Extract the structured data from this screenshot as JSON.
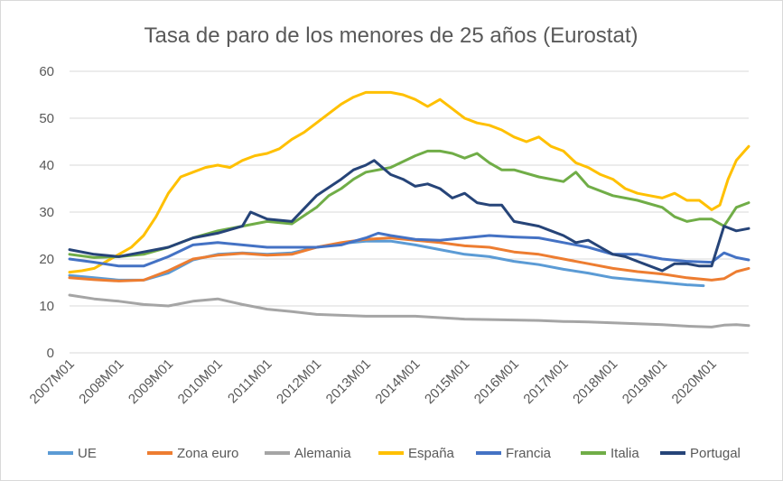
{
  "chart_data": {
    "type": "line",
    "title": "Tasa de paro de los menores de 25 años (Eurostat)",
    "xlabel": "",
    "ylabel": "",
    "ylim": [
      0,
      60
    ],
    "yticks": [
      0,
      10,
      20,
      30,
      40,
      50,
      60
    ],
    "x_start": "2007M01",
    "x_end": "2020M10",
    "xtick_labels": [
      "2007M01",
      "2008M01",
      "2009M01",
      "2010M01",
      "2011M01",
      "2012M01",
      "2013M01",
      "2014M01",
      "2015M01",
      "2016M01",
      "2017M01",
      "2018M01",
      "2019M01",
      "2020M01"
    ],
    "grid": true,
    "legend_position": "bottom",
    "series": [
      {
        "name": "UE",
        "color": "#5b9bd5",
        "width": 3,
        "points": [
          [
            "2007M01",
            16.5
          ],
          [
            "2007M07",
            16
          ],
          [
            "2008M01",
            15.5
          ],
          [
            "2008M07",
            15.5
          ],
          [
            "2009M01",
            17
          ],
          [
            "2009M07",
            19.8
          ],
          [
            "2010M01",
            21
          ],
          [
            "2010M07",
            21.3
          ],
          [
            "2011M01",
            21
          ],
          [
            "2011M07",
            21.3
          ],
          [
            "2012M01",
            22.5
          ],
          [
            "2012M07",
            23.3
          ],
          [
            "2013M01",
            23.8
          ],
          [
            "2013M07",
            23.8
          ],
          [
            "2014M01",
            23
          ],
          [
            "2014M07",
            22
          ],
          [
            "2015M01",
            21
          ],
          [
            "2015M07",
            20.5
          ],
          [
            "2016M01",
            19.5
          ],
          [
            "2016M07",
            18.8
          ],
          [
            "2017M01",
            17.8
          ],
          [
            "2017M07",
            17
          ],
          [
            "2018M01",
            16
          ],
          [
            "2018M07",
            15.5
          ],
          [
            "2019M01",
            15
          ],
          [
            "2019M07",
            14.5
          ],
          [
            "2019M11",
            14.3
          ]
        ]
      },
      {
        "name": "Zona euro",
        "color": "#ed7d31",
        "width": 3,
        "points": [
          [
            "2007M01",
            16
          ],
          [
            "2007M07",
            15.6
          ],
          [
            "2008M01",
            15.3
          ],
          [
            "2008M07",
            15.5
          ],
          [
            "2009M01",
            17.5
          ],
          [
            "2009M07",
            20
          ],
          [
            "2010M01",
            20.8
          ],
          [
            "2010M07",
            21.2
          ],
          [
            "2011M01",
            20.8
          ],
          [
            "2011M07",
            21
          ],
          [
            "2012M01",
            22.5
          ],
          [
            "2012M07",
            23.5
          ],
          [
            "2013M01",
            24.2
          ],
          [
            "2013M07",
            24.5
          ],
          [
            "2014M01",
            24
          ],
          [
            "2014M07",
            23.5
          ],
          [
            "2015M01",
            22.8
          ],
          [
            "2015M07",
            22.5
          ],
          [
            "2016M01",
            21.5
          ],
          [
            "2016M07",
            21
          ],
          [
            "2017M01",
            20
          ],
          [
            "2017M07",
            19
          ],
          [
            "2018M01",
            18
          ],
          [
            "2018M07",
            17.3
          ],
          [
            "2019M01",
            16.8
          ],
          [
            "2019M07",
            16
          ],
          [
            "2020M01",
            15.5
          ],
          [
            "2020M04",
            15.8
          ],
          [
            "2020M07",
            17.3
          ],
          [
            "2020M10",
            18
          ]
        ]
      },
      {
        "name": "Alemania",
        "color": "#a5a5a5",
        "width": 3,
        "points": [
          [
            "2007M01",
            12.3
          ],
          [
            "2007M07",
            11.5
          ],
          [
            "2008M01",
            11
          ],
          [
            "2008M07",
            10.3
          ],
          [
            "2009M01",
            10
          ],
          [
            "2009M07",
            11
          ],
          [
            "2010M01",
            11.5
          ],
          [
            "2010M07",
            10.3
          ],
          [
            "2011M01",
            9.3
          ],
          [
            "2011M07",
            8.8
          ],
          [
            "2012M01",
            8.2
          ],
          [
            "2012M07",
            8
          ],
          [
            "2013M01",
            7.8
          ],
          [
            "2013M07",
            7.8
          ],
          [
            "2014M01",
            7.8
          ],
          [
            "2014M07",
            7.5
          ],
          [
            "2015M01",
            7.2
          ],
          [
            "2015M07",
            7.1
          ],
          [
            "2016M01",
            7
          ],
          [
            "2016M07",
            6.9
          ],
          [
            "2017M01",
            6.7
          ],
          [
            "2017M07",
            6.6
          ],
          [
            "2018M01",
            6.4
          ],
          [
            "2018M07",
            6.2
          ],
          [
            "2019M01",
            6
          ],
          [
            "2019M07",
            5.7
          ],
          [
            "2020M01",
            5.5
          ],
          [
            "2020M04",
            5.9
          ],
          [
            "2020M07",
            6
          ],
          [
            "2020M10",
            5.8
          ]
        ]
      },
      {
        "name": "España",
        "color": "#ffc000",
        "width": 3,
        "points": [
          [
            "2007M01",
            17.2
          ],
          [
            "2007M04",
            17.5
          ],
          [
            "2007M07",
            18
          ],
          [
            "2007M10",
            19.5
          ],
          [
            "2008M01",
            21
          ],
          [
            "2008M04",
            22.5
          ],
          [
            "2008M07",
            25
          ],
          [
            "2008M10",
            29
          ],
          [
            "2009M01",
            34
          ],
          [
            "2009M04",
            37.5
          ],
          [
            "2009M07",
            38.5
          ],
          [
            "2009M10",
            39.5
          ],
          [
            "2010M01",
            40
          ],
          [
            "2010M04",
            39.5
          ],
          [
            "2010M07",
            41
          ],
          [
            "2010M10",
            42
          ],
          [
            "2011M01",
            42.5
          ],
          [
            "2011M04",
            43.5
          ],
          [
            "2011M07",
            45.5
          ],
          [
            "2011M10",
            47
          ],
          [
            "2012M01",
            49
          ],
          [
            "2012M04",
            51
          ],
          [
            "2012M07",
            53
          ],
          [
            "2012M10",
            54.5
          ],
          [
            "2013M01",
            55.5
          ],
          [
            "2013M04",
            55.5
          ],
          [
            "2013M07",
            55.5
          ],
          [
            "2013M10",
            55
          ],
          [
            "2014M01",
            54
          ],
          [
            "2014M04",
            52.5
          ],
          [
            "2014M07",
            54
          ],
          [
            "2014M10",
            52
          ],
          [
            "2015M01",
            50
          ],
          [
            "2015M04",
            49
          ],
          [
            "2015M07",
            48.5
          ],
          [
            "2015M10",
            47.5
          ],
          [
            "2016M01",
            46
          ],
          [
            "2016M04",
            45
          ],
          [
            "2016M07",
            46
          ],
          [
            "2016M10",
            44
          ],
          [
            "2017M01",
            43
          ],
          [
            "2017M04",
            40.5
          ],
          [
            "2017M07",
            39.5
          ],
          [
            "2017M10",
            38
          ],
          [
            "2018M01",
            37
          ],
          [
            "2018M04",
            35
          ],
          [
            "2018M07",
            34
          ],
          [
            "2018M10",
            33.5
          ],
          [
            "2019M01",
            33
          ],
          [
            "2019M04",
            34
          ],
          [
            "2019M07",
            32.5
          ],
          [
            "2019M10",
            32.5
          ],
          [
            "2020M01",
            30.5
          ],
          [
            "2020M03",
            31.5
          ],
          [
            "2020M05",
            37
          ],
          [
            "2020M07",
            41
          ],
          [
            "2020M09",
            43
          ],
          [
            "2020M10",
            44
          ]
        ]
      },
      {
        "name": "Francia",
        "color": "#4472c4",
        "width": 3,
        "points": [
          [
            "2007M01",
            20
          ],
          [
            "2007M07",
            19.3
          ],
          [
            "2008M01",
            18.5
          ],
          [
            "2008M07",
            18.5
          ],
          [
            "2009M01",
            20.5
          ],
          [
            "2009M07",
            23
          ],
          [
            "2010M01",
            23.5
          ],
          [
            "2010M07",
            23
          ],
          [
            "2011M01",
            22.5
          ],
          [
            "2011M07",
            22.5
          ],
          [
            "2012M01",
            22.5
          ],
          [
            "2012M07",
            23
          ],
          [
            "2013M01",
            24.5
          ],
          [
            "2013M04",
            25.5
          ],
          [
            "2013M07",
            25
          ],
          [
            "2014M01",
            24.2
          ],
          [
            "2014M07",
            24
          ],
          [
            "2015M01",
            24.5
          ],
          [
            "2015M07",
            25
          ],
          [
            "2016M01",
            24.7
          ],
          [
            "2016M07",
            24.5
          ],
          [
            "2017M01",
            23.5
          ],
          [
            "2017M07",
            22.5
          ],
          [
            "2018M01",
            21
          ],
          [
            "2018M07",
            21
          ],
          [
            "2019M01",
            20
          ],
          [
            "2019M07",
            19.5
          ],
          [
            "2020M01",
            19.3
          ],
          [
            "2020M04",
            21.3
          ],
          [
            "2020M07",
            20.3
          ],
          [
            "2020M10",
            19.8
          ]
        ]
      },
      {
        "name": "Italia",
        "color": "#70ad47",
        "width": 3,
        "points": [
          [
            "2007M01",
            21
          ],
          [
            "2007M07",
            20.3
          ],
          [
            "2008M01",
            20.5
          ],
          [
            "2008M07",
            21
          ],
          [
            "2009M01",
            22.5
          ],
          [
            "2009M07",
            24.5
          ],
          [
            "2010M01",
            26
          ],
          [
            "2010M07",
            27
          ],
          [
            "2011M01",
            28
          ],
          [
            "2011M07",
            27.5
          ],
          [
            "2012M01",
            31
          ],
          [
            "2012M04",
            33.5
          ],
          [
            "2012M07",
            35
          ],
          [
            "2012M10",
            37
          ],
          [
            "2013M01",
            38.5
          ],
          [
            "2013M07",
            39.5
          ],
          [
            "2014M01",
            42
          ],
          [
            "2014M04",
            43
          ],
          [
            "2014M07",
            43
          ],
          [
            "2014M10",
            42.5
          ],
          [
            "2015M01",
            41.5
          ],
          [
            "2015M04",
            42.5
          ],
          [
            "2015M07",
            40.5
          ],
          [
            "2015M10",
            39
          ],
          [
            "2016M01",
            39
          ],
          [
            "2016M07",
            37.5
          ],
          [
            "2017M01",
            36.5
          ],
          [
            "2017M04",
            38.5
          ],
          [
            "2017M07",
            35.5
          ],
          [
            "2018M01",
            33.5
          ],
          [
            "2018M07",
            32.5
          ],
          [
            "2019M01",
            31
          ],
          [
            "2019M04",
            29
          ],
          [
            "2019M07",
            28
          ],
          [
            "2019M10",
            28.5
          ],
          [
            "2020M01",
            28.5
          ],
          [
            "2020M04",
            27
          ],
          [
            "2020M07",
            31
          ],
          [
            "2020M10",
            32
          ]
        ]
      },
      {
        "name": "Portugal",
        "color": "#264478",
        "width": 3,
        "points": [
          [
            "2007M01",
            22
          ],
          [
            "2007M07",
            21
          ],
          [
            "2008M01",
            20.5
          ],
          [
            "2008M07",
            21.5
          ],
          [
            "2009M01",
            22.5
          ],
          [
            "2009M07",
            24.5
          ],
          [
            "2010M01",
            25.5
          ],
          [
            "2010M07",
            27
          ],
          [
            "2010M09",
            30
          ],
          [
            "2011M01",
            28.5
          ],
          [
            "2011M07",
            28
          ],
          [
            "2012M01",
            33.5
          ],
          [
            "2012M07",
            37
          ],
          [
            "2012M10",
            39
          ],
          [
            "2013M01",
            40
          ],
          [
            "2013M03",
            41
          ],
          [
            "2013M07",
            38
          ],
          [
            "2013M10",
            37
          ],
          [
            "2014M01",
            35.5
          ],
          [
            "2014M04",
            36
          ],
          [
            "2014M07",
            35
          ],
          [
            "2014M10",
            33
          ],
          [
            "2015M01",
            34
          ],
          [
            "2015M04",
            32
          ],
          [
            "2015M07",
            31.5
          ],
          [
            "2015M10",
            31.5
          ],
          [
            "2016M01",
            28
          ],
          [
            "2016M04",
            27.5
          ],
          [
            "2016M07",
            27
          ],
          [
            "2016M10",
            26
          ],
          [
            "2017M01",
            25
          ],
          [
            "2017M04",
            23.5
          ],
          [
            "2017M07",
            24
          ],
          [
            "2017M10",
            22.5
          ],
          [
            "2018M01",
            21
          ],
          [
            "2018M04",
            20.5
          ],
          [
            "2018M07",
            19.5
          ],
          [
            "2018M10",
            18.5
          ],
          [
            "2019M01",
            17.5
          ],
          [
            "2019M04",
            19
          ],
          [
            "2019M07",
            19
          ],
          [
            "2019M10",
            18.5
          ],
          [
            "2020M01",
            18.5
          ],
          [
            "2020M04",
            27
          ],
          [
            "2020M07",
            26
          ],
          [
            "2020M10",
            26.5
          ]
        ]
      }
    ]
  }
}
